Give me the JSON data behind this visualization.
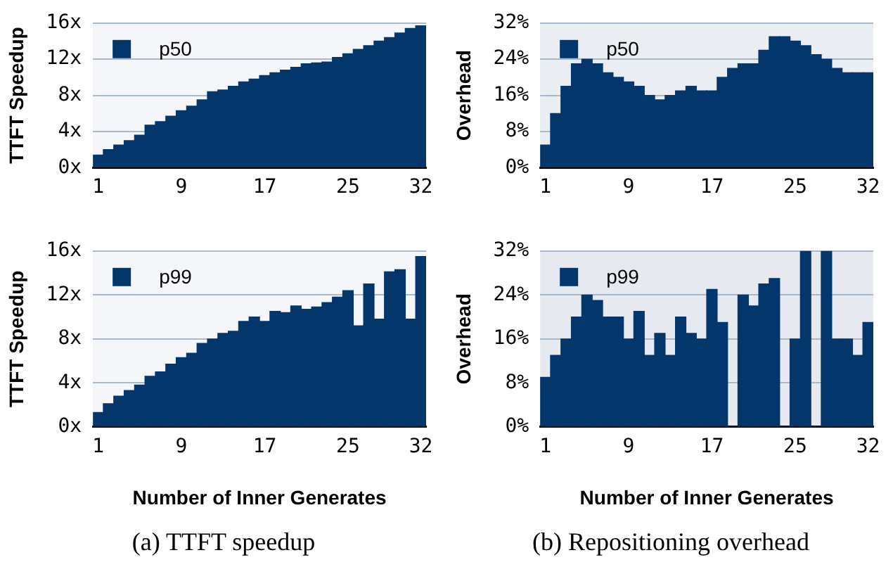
{
  "chart_data": [
    {
      "type": "bar",
      "ylabel": "TTFT Speedup",
      "categories": [
        "1",
        null,
        null,
        null,
        null,
        null,
        null,
        null,
        "9",
        null,
        null,
        null,
        null,
        null,
        null,
        null,
        "17",
        null,
        null,
        null,
        null,
        null,
        null,
        null,
        "25",
        null,
        null,
        null,
        null,
        null,
        null,
        "32"
      ],
      "series": [
        {
          "name": "p50",
          "color": "#03366b",
          "values": [
            1.4,
            2.0,
            2.5,
            3.0,
            3.6,
            4.7,
            5.1,
            5.7,
            6.3,
            6.8,
            7.5,
            8.4,
            8.6,
            9.0,
            9.5,
            9.8,
            10.2,
            10.5,
            10.8,
            11.1,
            11.5,
            11.6,
            11.7,
            12.2,
            12.6,
            13.1,
            13.5,
            14.0,
            14.4,
            14.9,
            15.4,
            15.7
          ]
        }
      ],
      "ylim": [
        0,
        16
      ],
      "yticks": [
        {
          "value": 0,
          "label": "0x"
        },
        {
          "value": 4,
          "label": "4x"
        },
        {
          "value": 8,
          "label": "8x"
        },
        {
          "value": 12,
          "label": "12x"
        },
        {
          "value": 16,
          "label": "16x"
        }
      ],
      "grid": "y",
      "legend": "top left"
    },
    {
      "type": "bar",
      "ylabel": "Overhead",
      "categories": [
        "1",
        null,
        null,
        null,
        null,
        null,
        null,
        null,
        "9",
        null,
        null,
        null,
        null,
        null,
        null,
        null,
        "17",
        null,
        null,
        null,
        null,
        null,
        null,
        null,
        "25",
        null,
        null,
        null,
        null,
        null,
        null,
        "32"
      ],
      "series": [
        {
          "name": "p50",
          "color": "#03366b",
          "values": [
            5,
            12,
            18,
            23,
            24,
            23,
            21,
            20,
            19,
            18,
            16,
            15,
            16,
            17,
            18,
            17,
            17,
            20,
            22,
            23,
            23,
            26,
            29,
            29,
            28,
            27,
            25,
            24,
            22,
            21,
            21,
            21
          ]
        }
      ],
      "ylim": [
        0,
        32
      ],
      "yticks": [
        {
          "value": 0,
          "label": "0%"
        },
        {
          "value": 8,
          "label": "8%"
        },
        {
          "value": 16,
          "label": "16%"
        },
        {
          "value": 24,
          "label": "24%"
        },
        {
          "value": 32,
          "label": "32%"
        }
      ],
      "grid": "y",
      "legend": "top left"
    },
    {
      "type": "bar",
      "ylabel": "TTFT Speedup",
      "xlabel": "Number of Inner Generates",
      "annotations": [
        "(a) TTFT speedup"
      ],
      "categories": [
        "1",
        null,
        null,
        null,
        null,
        null,
        null,
        null,
        "9",
        null,
        null,
        null,
        null,
        null,
        null,
        null,
        "17",
        null,
        null,
        null,
        null,
        null,
        null,
        null,
        "25",
        null,
        null,
        null,
        null,
        null,
        null,
        "32"
      ],
      "series": [
        {
          "name": "p99",
          "color": "#03366b",
          "values": [
            1.3,
            2.1,
            2.8,
            3.3,
            3.8,
            4.6,
            5.0,
            5.7,
            6.3,
            6.7,
            7.6,
            8.0,
            8.5,
            8.7,
            9.6,
            10.0,
            9.6,
            10.5,
            10.4,
            11.0,
            10.7,
            10.9,
            11.3,
            11.8,
            12.4,
            9.2,
            13.0,
            9.8,
            14.1,
            14.3,
            9.8,
            15.5
          ]
        }
      ],
      "ylim": [
        0,
        16
      ],
      "yticks": [
        {
          "value": 0,
          "label": "0x"
        },
        {
          "value": 4,
          "label": "4x"
        },
        {
          "value": 8,
          "label": "8x"
        },
        {
          "value": 12,
          "label": "12x"
        },
        {
          "value": 16,
          "label": "16x"
        }
      ],
      "grid": "y",
      "legend": "top left"
    },
    {
      "type": "bar",
      "ylabel": "Overhead",
      "xlabel": "Number of Inner Generates",
      "annotations": [
        "(b) Repositioning overhead"
      ],
      "categories": [
        "1",
        null,
        null,
        null,
        null,
        null,
        null,
        null,
        "9",
        null,
        null,
        null,
        null,
        null,
        null,
        null,
        "17",
        null,
        null,
        null,
        null,
        null,
        null,
        null,
        "25",
        null,
        null,
        null,
        null,
        null,
        null,
        "32"
      ],
      "series": [
        {
          "name": "p99",
          "color": "#03366b",
          "values": [
            9,
            13,
            16,
            20,
            24,
            23,
            20,
            20,
            16,
            21,
            13,
            17,
            13,
            20,
            17,
            16,
            25,
            19,
            0,
            24,
            22,
            26,
            27,
            0,
            16,
            32,
            0,
            32,
            16,
            16,
            13,
            19
          ]
        }
      ],
      "ylim": [
        0,
        32
      ],
      "yticks": [
        {
          "value": 0,
          "label": "0%"
        },
        {
          "value": 8,
          "label": "8%"
        },
        {
          "value": 16,
          "label": "16%"
        },
        {
          "value": 24,
          "label": "24%"
        },
        {
          "value": 32,
          "label": "32%"
        }
      ],
      "grid": "y",
      "legend": "top left"
    }
  ]
}
